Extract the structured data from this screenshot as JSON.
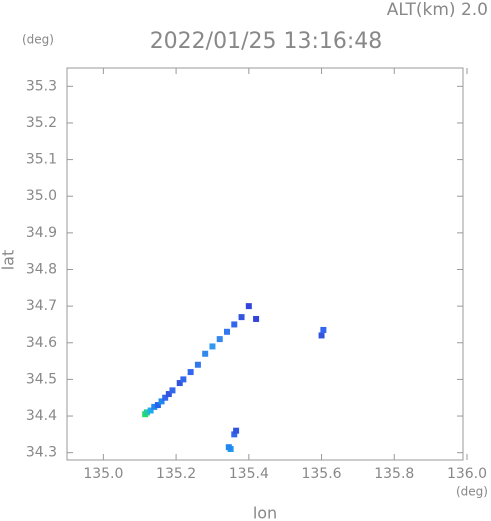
{
  "chart_data": {
    "type": "scatter",
    "title": "2022/01/25 13:16:48",
    "subtitle": "ALT(km) 2.0",
    "y_unit": "(deg)",
    "x_unit": "(deg)",
    "xlabel": "lon",
    "ylabel": "lat",
    "xlim": [
      134.9,
      136.0
    ],
    "ylim": [
      34.28,
      35.35
    ],
    "xticks": [
      {
        "value": 135,
        "label": "135.0"
      },
      135.2,
      135.4,
      135.6,
      135.8,
      {
        "value": 136,
        "label": "136.0"
      }
    ],
    "yticks": [
      34.3,
      34.4,
      34.5,
      34.6,
      34.7,
      34.8,
      34.9,
      {
        "value": 35,
        "label": "35.0"
      },
      35.1,
      35.2,
      35.3
    ],
    "x": [
      135.115,
      135.12,
      135.13,
      135.14,
      135.15,
      135.16,
      135.17,
      135.18,
      135.19,
      135.21,
      135.22,
      135.24,
      135.26,
      135.28,
      135.3,
      135.32,
      135.34,
      135.36,
      135.38,
      135.4,
      135.42,
      135.35,
      135.345,
      135.36,
      135.365,
      135.6,
      135.605
    ],
    "y": [
      34.405,
      34.41,
      34.415,
      34.425,
      34.43,
      34.44,
      34.45,
      34.46,
      34.47,
      34.49,
      34.5,
      34.52,
      34.54,
      34.57,
      34.59,
      34.61,
      34.63,
      34.65,
      34.67,
      34.7,
      34.665,
      34.31,
      34.315,
      34.35,
      34.36,
      34.62,
      34.635
    ],
    "colors": [
      "#22dd66",
      "#22cc99",
      "#22aaee",
      "#2288ee",
      "#2266ee",
      "#2288ee",
      "#3366ee",
      "#3355dd",
      "#3366ee",
      "#3355dd",
      "#3366ee",
      "#3366ee",
      "#3377ee",
      "#3388ee",
      "#3399ee",
      "#3388ee",
      "#3377ee",
      "#3366ee",
      "#3355dd",
      "#3344dd",
      "#3344dd",
      "#2299ee",
      "#2288ee",
      "#3366ee",
      "#3355dd",
      "#3355dd",
      "#3366ee"
    ]
  }
}
